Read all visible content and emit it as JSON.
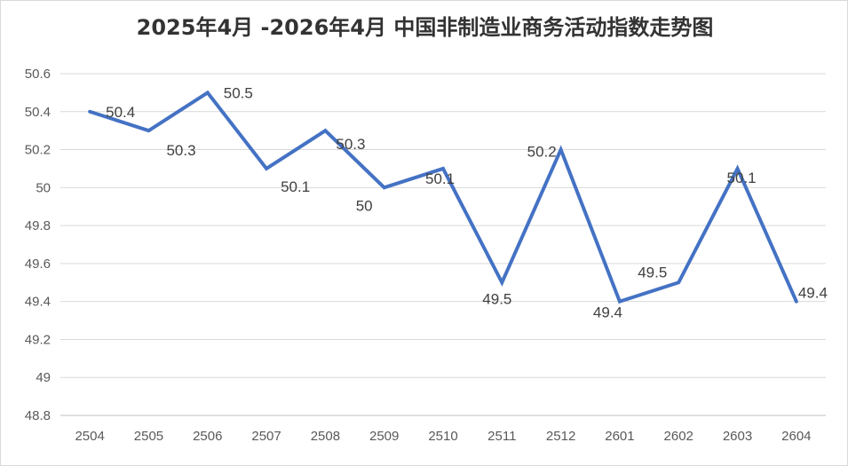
{
  "chart_data": {
    "type": "line",
    "title": "2025年4月 -2026年4月 中国非制造业商务活动指数走势图",
    "xlabel": "",
    "ylabel": "",
    "categories": [
      "2504",
      "2505",
      "2506",
      "2507",
      "2508",
      "2509",
      "2510",
      "2511",
      "2512",
      "2601",
      "2602",
      "2603",
      "2604"
    ],
    "series": [
      {
        "values": [
          50.4,
          50.3,
          50.5,
          50.1,
          50.3,
          50.0,
          50.1,
          49.5,
          50.2,
          49.4,
          49.5,
          50.1,
          49.4
        ]
      }
    ],
    "data_labels": [
      "50.4",
      "50.3",
      "50.5",
      "50.1",
      "50.3",
      "50",
      "50.1",
      "49.5",
      "50.2",
      "49.4",
      "49.5",
      "50.1",
      "49.4"
    ],
    "ylim": [
      48.8,
      50.6
    ],
    "yticks": [
      "48.8",
      "49",
      "49.2",
      "49.4",
      "49.6",
      "49.8",
      "50",
      "50.2",
      "50.4",
      "50.6"
    ],
    "grid": true,
    "legend": "none",
    "line_color": "#4472c4",
    "grid_color": "#d9d9d9"
  }
}
